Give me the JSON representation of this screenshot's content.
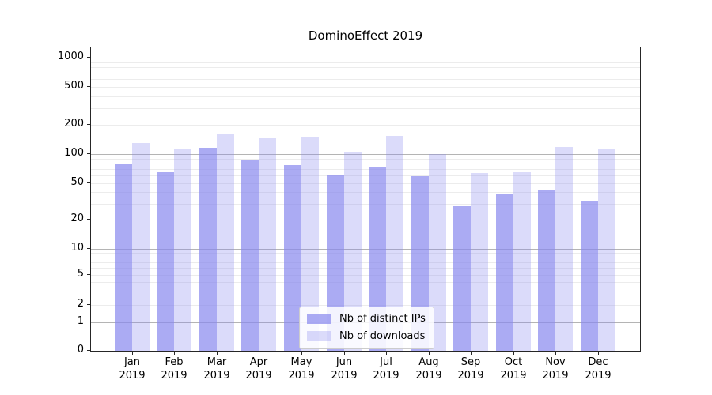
{
  "figure": {
    "title": "DominoEffect 2019"
  },
  "chart_data": {
    "type": "bar",
    "title": "DominoEffect 2019",
    "yscale": "symlog",
    "ylim": [
      0,
      1000
    ],
    "y_ticks": [
      0,
      1,
      2,
      5,
      10,
      20,
      50,
      100,
      200,
      500,
      1000
    ],
    "grid": true,
    "legend_position": "lower center inside plot",
    "x_tick_months": [
      "Jan",
      "Feb",
      "Mar",
      "Apr",
      "May",
      "Jun",
      "Jul",
      "Aug",
      "Sep",
      "Oct",
      "Nov",
      "Dec"
    ],
    "x_tick_year": "2019",
    "categories": [
      "Jan 2019",
      "Feb 2019",
      "Mar 2019",
      "Apr 2019",
      "May 2019",
      "Jun 2019",
      "Jul 2019",
      "Aug 2019",
      "Sep 2019",
      "Oct 2019",
      "Nov 2019",
      "Dec 2019"
    ],
    "bar_base_color": "#8888ee",
    "series": [
      {
        "name": "Nb of distinct IPs",
        "color": "rgba(136,136,238,0.7)",
        "values": [
          80,
          65,
          116,
          88,
          77,
          62,
          74,
          59,
          28,
          38,
          43,
          32
        ]
      },
      {
        "name": "Nb of downloads",
        "color": "rgba(136,136,238,0.3)",
        "values": [
          130,
          113,
          160,
          145,
          150,
          104,
          153,
          100,
          64,
          65,
          119,
          112
        ]
      }
    ]
  }
}
